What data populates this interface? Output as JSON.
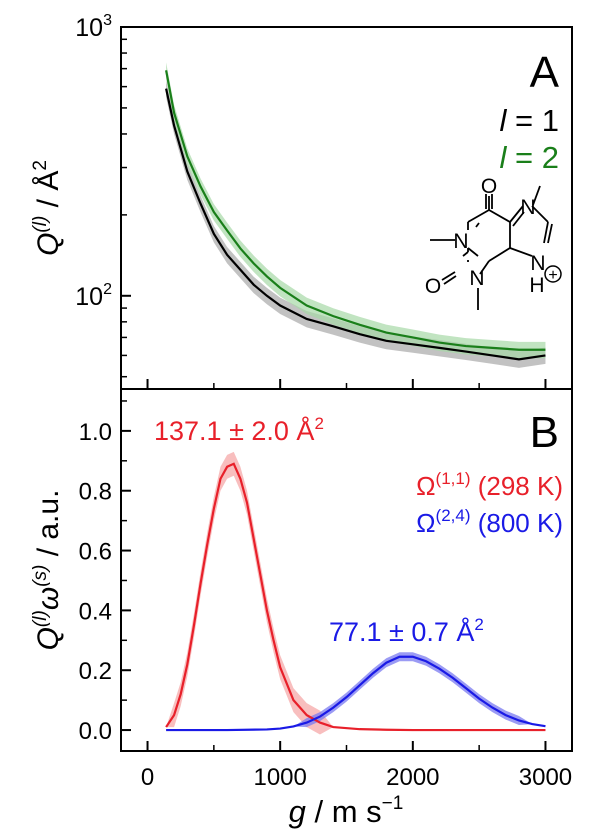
{
  "chart_data": [
    {
      "type": "line",
      "panel": "A",
      "y_scale": "log",
      "xlim": [
        -200,
        3200
      ],
      "ylim": [
        45,
        1000
      ],
      "y_ticks": [
        {
          "value": 100,
          "base": "10",
          "exp": "2"
        },
        {
          "value": 1000,
          "base": "10",
          "exp": "3"
        }
      ],
      "ylabel": {
        "main": "Q",
        "sup": "(l)",
        "rest": " / Å",
        "rest_sup": "2"
      },
      "legend": [
        {
          "prefix": "l",
          "text": " = 1",
          "color": "#000000"
        },
        {
          "prefix": "l",
          "text": " = 2",
          "color": "#1a7f1a"
        }
      ],
      "series": [
        {
          "color": "#000000",
          "band_color": "#a8a8a8",
          "x": [
            140,
            200,
            300,
            400,
            500,
            600,
            700,
            800,
            900,
            1000,
            1200,
            1400,
            1600,
            1800,
            2000,
            2200,
            2400,
            2600,
            2800,
            3000
          ],
          "y": [
            590,
            430,
            290,
            220,
            170,
            142,
            125,
            110,
            100,
            92,
            82,
            77,
            72,
            68,
            66,
            64,
            62,
            60,
            58,
            60
          ]
        },
        {
          "color": "#1a7f1a",
          "band_color": "#a6d9a6",
          "x": [
            140,
            200,
            300,
            400,
            500,
            600,
            700,
            800,
            900,
            1000,
            1200,
            1400,
            1600,
            1800,
            2000,
            2200,
            2400,
            2600,
            2800,
            3000
          ],
          "y": [
            690,
            480,
            330,
            255,
            205,
            175,
            150,
            132,
            118,
            107,
            92,
            84,
            78,
            73,
            70,
            67,
            65,
            64,
            63,
            63
          ]
        }
      ]
    },
    {
      "type": "line",
      "panel": "B",
      "xlim": [
        -200,
        3200
      ],
      "ylim": [
        -0.07,
        1.14
      ],
      "x_ticks": [
        0,
        1000,
        2000,
        3000
      ],
      "y_ticks": [
        "0.0",
        "0.2",
        "0.4",
        "0.6",
        "0.8",
        "1.0"
      ],
      "xlabel": {
        "main": "g",
        "rest": " / m s",
        "sup": "−1"
      },
      "ylabel": {
        "main": "Q",
        "sup1": "(l)",
        "mid": "ω",
        "sup2": "(s)",
        "rest": " / a.u."
      },
      "legend": [
        {
          "base": "Ω",
          "sup": "(1,1)",
          "text": " (298 K)",
          "color": "#e8202a"
        },
        {
          "base": "Ω",
          "sup": "(2,4)",
          "text": " (800 K)",
          "color": "#1a1ae6"
        }
      ],
      "annotations": [
        {
          "text": "137.1 ± 2.0 Å",
          "sup": "2",
          "color": "#e8202a"
        },
        {
          "text": "77.1 ± 0.7 Å",
          "sup": "2",
          "color": "#1a1ae6"
        }
      ],
      "series": [
        {
          "color": "#e8202a",
          "band_color": "#f6a8a8",
          "band_width": 0.04,
          "x": [
            140,
            200,
            250,
            300,
            350,
            400,
            450,
            500,
            550,
            600,
            650,
            700,
            750,
            800,
            850,
            900,
            950,
            1000,
            1100,
            1200,
            1300,
            1400,
            1600,
            1800,
            2000,
            2500,
            3000
          ],
          "y": [
            0.01,
            0.05,
            0.12,
            0.22,
            0.35,
            0.49,
            0.62,
            0.74,
            0.84,
            0.88,
            0.89,
            0.84,
            0.76,
            0.64,
            0.52,
            0.4,
            0.3,
            0.21,
            0.1,
            0.05,
            0.025,
            0.01,
            0.003,
            0.001,
            0.0,
            0.0,
            0.0
          ]
        },
        {
          "color": "#1a1ae6",
          "band_color": "#7a7af0",
          "band_width": 0.015,
          "x": [
            140,
            600,
            900,
            1000,
            1100,
            1200,
            1300,
            1400,
            1500,
            1600,
            1700,
            1800,
            1900,
            2000,
            2100,
            2200,
            2300,
            2400,
            2500,
            2600,
            2700,
            2800,
            2900,
            3000
          ],
          "y": [
            0.0,
            0.0,
            0.002,
            0.005,
            0.012,
            0.025,
            0.045,
            0.075,
            0.11,
            0.15,
            0.19,
            0.225,
            0.245,
            0.245,
            0.23,
            0.205,
            0.175,
            0.14,
            0.105,
            0.075,
            0.05,
            0.032,
            0.02,
            0.013
          ]
        }
      ]
    }
  ],
  "panel_labels": {
    "a": "A",
    "b": "B"
  },
  "molecule": {
    "atoms": [
      "O",
      "N",
      "N",
      "O",
      "N",
      "N",
      "H"
    ],
    "charge": "+"
  }
}
